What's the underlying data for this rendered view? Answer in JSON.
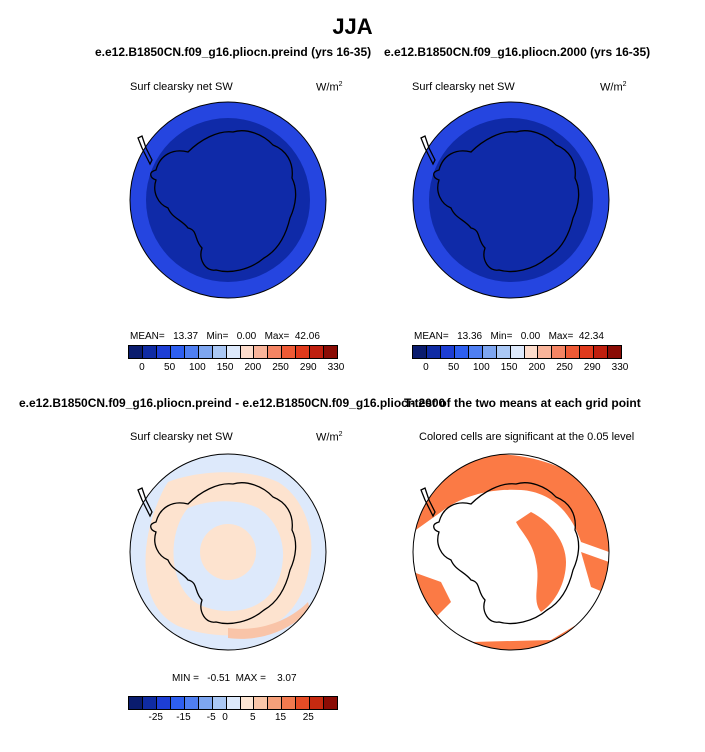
{
  "figure": {
    "title": "JJA",
    "case_left": "e.e12.B1850CN.f09_g16.pliocn.preind (yrs 16-35)",
    "case_right": "e.e12.B1850CN.f09_g16.pliocn.2000 (yrs 16-35)",
    "diff_title": "e.e12.B1850CN.f09_g16.pliocn.preind - e.e12.B1850CN.f09_g16.pliocn.2000",
    "ttest_title": "T-test of the two means at each grid point",
    "significance_note": "Colored cells are significant at the 0.05 level"
  },
  "panels": {
    "top_left": {
      "variable": "Surf clearsky net SW",
      "units": "W/m",
      "units_exp": "2",
      "mean_label": "MEAN=",
      "mean": "13.37",
      "min_label": "Min=",
      "min": "0.00",
      "max_label": "Max=",
      "max": "42.06"
    },
    "top_right": {
      "variable": "Surf clearsky net SW",
      "units": "W/m",
      "units_exp": "2",
      "mean_label": "MEAN=",
      "mean": "13.36",
      "min_label": "Min=",
      "min": "0.00",
      "max_label": "Max=",
      "max": "42.34"
    },
    "bottom_left": {
      "variable": "Surf clearsky net SW",
      "units": "W/m",
      "units_exp": "2",
      "min_label": "MIN =",
      "min": "-0.51",
      "max_label": "MAX =",
      "max": "3.07"
    }
  },
  "colors": {
    "abs_bar": [
      "#0a1c6e",
      "#0f2ba3",
      "#1d3ed4",
      "#2e5ff0",
      "#4f7ff2",
      "#7ea6f0",
      "#aac8f5",
      "#dde9fb",
      "#fddccb",
      "#f9b49a",
      "#f48463",
      "#ee5a35",
      "#e03a1c",
      "#bf1f0e",
      "#8a0c05"
    ],
    "diff_bar": [
      "#0a1c6e",
      "#0f2ba3",
      "#1d3ed4",
      "#2e5ff0",
      "#4f7ff2",
      "#7ea6f0",
      "#aac8f5",
      "#dde9fb",
      "#fde6d4",
      "#fac6a8",
      "#f6a07a",
      "#f27a4f",
      "#e64d26",
      "#c62a10",
      "#8a0c05"
    ],
    "ttest_fill": "#fb7a45"
  },
  "chart_data": [
    {
      "type": "heatmap",
      "title": "Surf clearsky net SW",
      "units": "W/m2",
      "colorbar_ticks": [
        "0",
        "50",
        "100",
        "150",
        "200",
        "250",
        "290",
        "330"
      ],
      "mean": 13.37,
      "min": 0.0,
      "max": 42.06
    },
    {
      "type": "heatmap",
      "title": "Surf clearsky net SW",
      "units": "W/m2",
      "colorbar_ticks": [
        "0",
        "50",
        "100",
        "150",
        "200",
        "250",
        "290",
        "330"
      ],
      "mean": 13.36,
      "min": 0.0,
      "max": 42.34
    },
    {
      "type": "heatmap",
      "title": "Surf clearsky net SW",
      "units": "W/m2",
      "colorbar_ticks": [
        "-25",
        "-15",
        "-5",
        "0",
        "5",
        "15",
        "25"
      ],
      "min": -0.51,
      "max": 3.07
    },
    {
      "type": "heatmap",
      "title": "Colored cells are significant at the 0.05 level"
    }
  ]
}
